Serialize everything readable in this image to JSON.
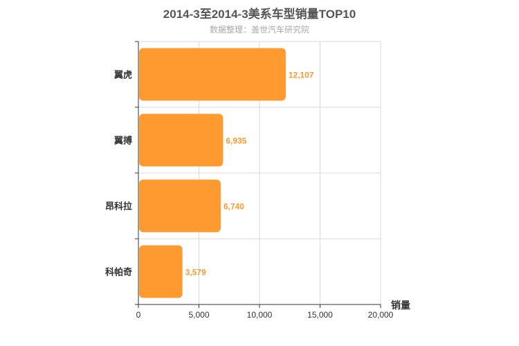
{
  "chart_data": {
    "type": "bar",
    "orientation": "horizontal",
    "title": "2014-3至2014-3美系车型销量TOP10",
    "subtitle": "数据整理：盖世汽车研究院",
    "categories": [
      "翼虎",
      "翼搏",
      "昂科拉",
      "科帕奇"
    ],
    "values": [
      12107,
      6935,
      6740,
      3579
    ],
    "value_labels": [
      "12,107",
      "6,935",
      "6,740",
      "3,579"
    ],
    "xlabel": "销量",
    "xlim": [
      0,
      20000
    ],
    "x_ticks": [
      0,
      5000,
      10000,
      15000,
      20000
    ],
    "x_tick_labels": [
      "0",
      "5,000",
      "10,000",
      "15,000",
      "20,000"
    ],
    "grid": true,
    "colors": {
      "bar": "#ff9a30",
      "label": "#ff9a30"
    }
  }
}
